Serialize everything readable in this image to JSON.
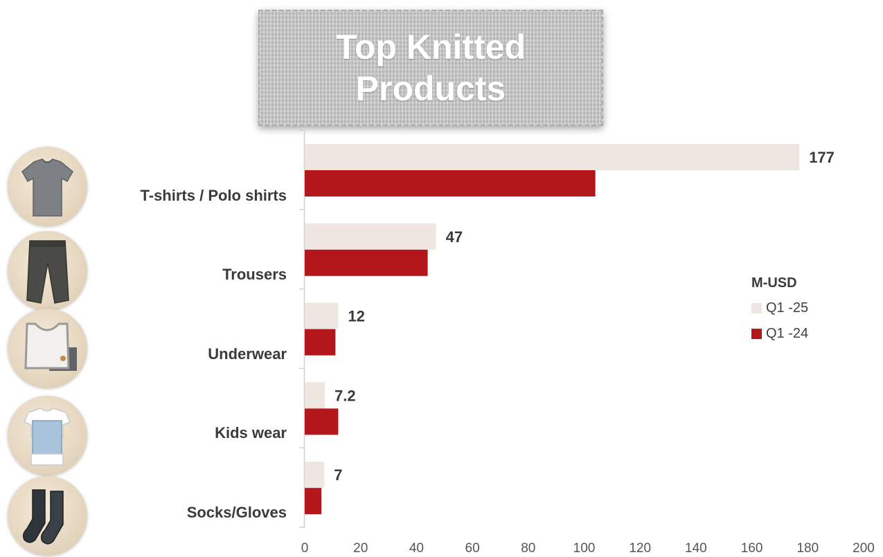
{
  "title": "Top Knitted\nProducts",
  "colors": {
    "q1_25": "#f0e6e1",
    "q1_24": "#b3171c",
    "text": "#3a3a3a",
    "axis": "#d0d0d0"
  },
  "legend": {
    "title": "M-USD",
    "items": [
      "Q1 -25",
      "Q1 -24"
    ]
  },
  "product_images": [
    {
      "name": "grey-tshirt-icon"
    },
    {
      "name": "grey-trousers-icon"
    },
    {
      "name": "white-underwear-icon"
    },
    {
      "name": "kids-overall-icon"
    },
    {
      "name": "dark-socks-icon"
    }
  ],
  "chart_data": {
    "type": "bar",
    "orientation": "horizontal",
    "title": "Top Knitted Products",
    "unit": "M-USD",
    "categories": [
      "T-shirts / Polo shirts",
      "Trousers",
      "Underwear",
      "Kids wear",
      "Socks/Gloves"
    ],
    "series": [
      {
        "name": "Q1 -25",
        "values": [
          177,
          47,
          12,
          7.2,
          7
        ],
        "labels": [
          "177",
          "47",
          "12",
          "7.2",
          "7"
        ],
        "color": "#f0e6e1"
      },
      {
        "name": "Q1 -24",
        "values": [
          104,
          44,
          11,
          12,
          6
        ],
        "color": "#b3171c"
      }
    ],
    "xlim": [
      0,
      200
    ],
    "xticks": [
      0,
      20,
      40,
      60,
      80,
      100,
      120,
      140,
      160,
      180,
      200
    ],
    "grid": false,
    "legend_position": "right"
  }
}
